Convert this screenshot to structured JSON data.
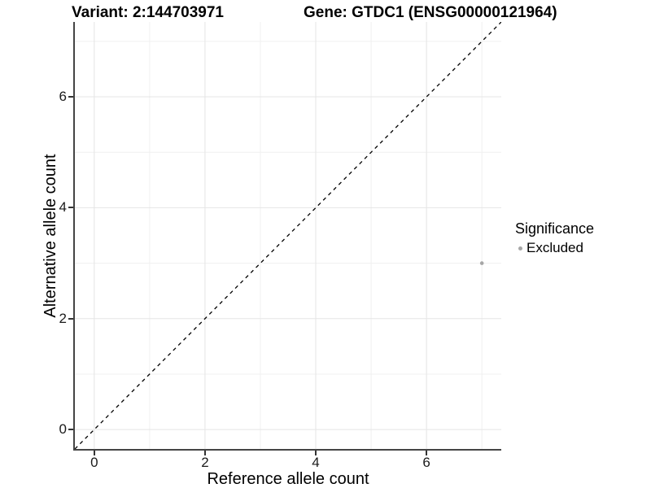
{
  "header": {
    "variant_title": "Variant: 2:144703971",
    "gene_title": "Gene: GTDC1 (ENSG00000121964)"
  },
  "legend": {
    "title": "Significance",
    "items": [
      {
        "label": "Excluded",
        "color": "#a6a6a6"
      }
    ]
  },
  "chart_data": {
    "type": "scatter",
    "title": "Variant: 2:144703971 | Gene: GTDC1 (ENSG00000121964)",
    "xlabel": "Reference allele count",
    "ylabel": "Alternative allele count",
    "xlim": [
      -0.35,
      7.35
    ],
    "ylim": [
      -0.35,
      7.35
    ],
    "x_ticks": [
      0,
      2,
      4,
      6
    ],
    "y_ticks": [
      0,
      2,
      4,
      6
    ],
    "x_minor_ticks": [
      1,
      3,
      5,
      7
    ],
    "y_minor_ticks": [
      1,
      3,
      5,
      7
    ],
    "grid": true,
    "legend_position": "right",
    "series": [
      {
        "name": "Excluded",
        "color": "#a6a6a6",
        "points": [
          [
            7,
            3
          ]
        ],
        "point_radius": 2.3
      }
    ],
    "reference_line": {
      "type": "identity",
      "style": "dashed",
      "color": "#000000"
    },
    "style_colors": {
      "grid_major": "#e5e5e5",
      "grid_minor": "#f0f0f0",
      "axis_line": "#454545",
      "tick_mark": "#333333",
      "tick_text": "#1a1a1a"
    }
  }
}
